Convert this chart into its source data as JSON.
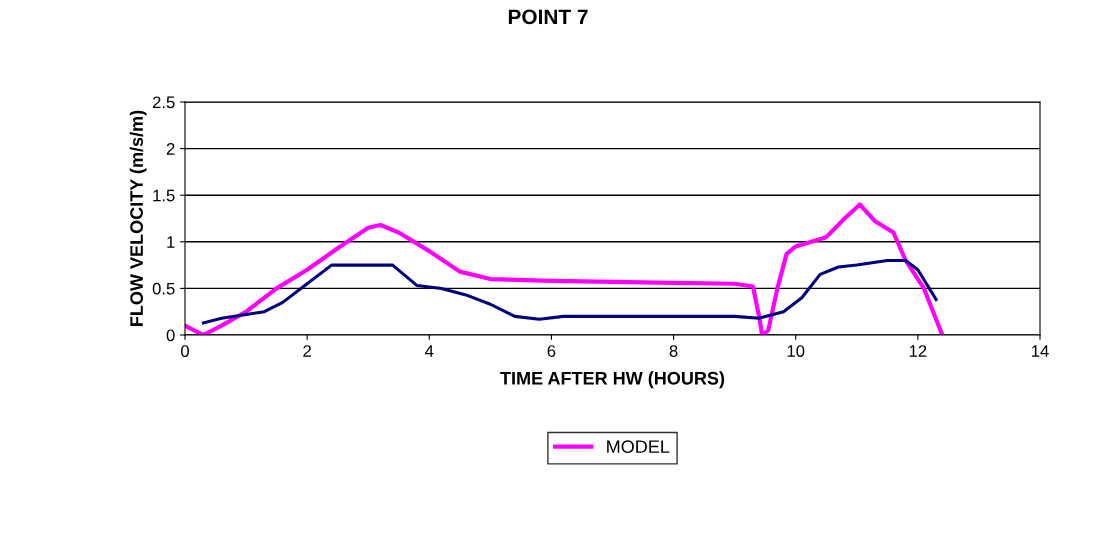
{
  "chart_data": {
    "type": "line",
    "title": "POINT 7",
    "xlabel": "TIME AFTER HW (HOURS)",
    "ylabel": "FLOW VELOCITY (m/s/m)",
    "xlim": [
      0,
      14
    ],
    "xticks": [
      0,
      2,
      4,
      6,
      8,
      10,
      12,
      14
    ],
    "ylim": [
      0,
      2.5
    ],
    "yticks": [
      0,
      0.5,
      1,
      1.5,
      2,
      2.5
    ],
    "grid": "y",
    "legend": "bottom",
    "marker": "none",
    "series": [
      {
        "name": "MODEL",
        "color": "#ff00ff",
        "x": [
          0,
          0.3,
          0.6,
          1,
          1.5,
          2,
          2.5,
          3,
          3.2,
          3.5,
          4,
          4.5,
          5,
          6,
          7,
          8,
          9,
          9.3,
          9.4,
          9.45,
          9.55,
          9.7,
          9.85,
          10,
          10.5,
          10.8,
          11.05,
          11.3,
          11.6,
          11.8,
          12.1,
          12.4
        ],
        "values": [
          0.1,
          0,
          0.1,
          0.25,
          0.5,
          0.7,
          0.93,
          1.15,
          1.18,
          1.1,
          0.9,
          0.68,
          0.6,
          0.58,
          0.57,
          0.56,
          0.55,
          0.52,
          0.2,
          0,
          0.05,
          0.5,
          0.87,
          0.95,
          1.05,
          1.25,
          1.4,
          1.22,
          1.1,
          0.8,
          0.5,
          0
        ]
      },
      {
        "color": "#000080",
        "x": [
          0.3,
          0.6,
          1,
          1.3,
          1.6,
          2,
          2.4,
          2.7,
          3,
          3.4,
          3.8,
          4.2,
          4.6,
          5,
          5.4,
          5.8,
          6.2,
          7,
          8,
          9,
          9.4,
          9.8,
          10.1,
          10.4,
          10.7,
          11,
          11.5,
          11.8,
          12,
          12.3
        ],
        "values": [
          0.13,
          0.18,
          0.22,
          0.25,
          0.35,
          0.55,
          0.75,
          0.75,
          0.75,
          0.75,
          0.53,
          0.5,
          0.43,
          0.33,
          0.2,
          0.17,
          0.2,
          0.2,
          0.2,
          0.2,
          0.18,
          0.25,
          0.4,
          0.65,
          0.73,
          0.75,
          0.8,
          0.8,
          0.7,
          0.38
        ]
      }
    ]
  }
}
